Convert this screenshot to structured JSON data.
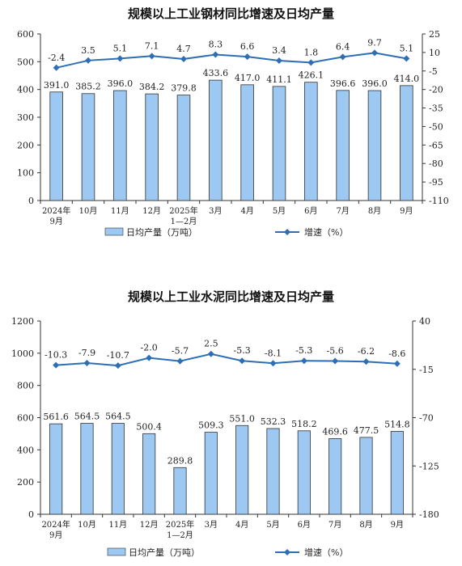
{
  "chart_data": [
    {
      "type": "bar",
      "title": "规模以上工业钢材同比增速及日均产量",
      "categories": [
        "2024年\n9月",
        "10月",
        "11月",
        "12月",
        "2025年\n1—2月",
        "3月",
        "4月",
        "5月",
        "6月",
        "7月",
        "8月",
        "9月"
      ],
      "series": [
        {
          "name": "日均产量（万吨）",
          "type": "bar",
          "axis": "left",
          "values": [
            391.0,
            385.2,
            396.0,
            384.2,
            379.8,
            433.6,
            417.0,
            411.1,
            426.1,
            396.6,
            396.0,
            414.0
          ],
          "labels": [
            "391.0",
            "385.2",
            "396.0",
            "384.2",
            "379.8",
            "433.6",
            "417.0",
            "411.1",
            "426.1",
            "396.6",
            "396.0",
            "414.0"
          ]
        },
        {
          "name": "增速（%）",
          "type": "line",
          "axis": "right",
          "values": [
            -2.4,
            3.5,
            5.1,
            7.1,
            4.7,
            8.3,
            6.6,
            3.4,
            1.8,
            6.4,
            9.7,
            5.1
          ],
          "labels": [
            "-2.4",
            "3.5",
            "5.1",
            "7.1",
            "4.7",
            "8.3",
            "6.6",
            "3.4",
            "1.8",
            "6.4",
            "9.7",
            "5.1"
          ]
        }
      ],
      "y_left": {
        "min": 0,
        "max": 600,
        "ticks": [
          "0",
          "100",
          "200",
          "300",
          "400",
          "500",
          "600"
        ]
      },
      "y_right": {
        "min": -110,
        "max": 25,
        "ticks": [
          "25",
          "10",
          "-5",
          "-20",
          "-35",
          "-50",
          "-65",
          "-80",
          "-95",
          "-110"
        ]
      },
      "legend_position": "bottom",
      "grid": false
    },
    {
      "type": "bar",
      "title": "规模以上工业水泥同比增速及日均产量",
      "categories": [
        "2024年\n9月",
        "10月",
        "11月",
        "12月",
        "2025年\n1—2月",
        "3月",
        "4月",
        "5月",
        "6月",
        "7月",
        "8月",
        "9月"
      ],
      "series": [
        {
          "name": "日均产量（万吨）",
          "type": "bar",
          "axis": "left",
          "values": [
            561.6,
            564.5,
            564.5,
            500.4,
            289.8,
            509.3,
            551.0,
            532.3,
            518.2,
            469.6,
            477.5,
            514.8
          ],
          "labels": [
            "561.6",
            "564.5",
            "564.5",
            "500.4",
            "289.8",
            "509.3",
            "551.0",
            "532.3",
            "518.2",
            "469.6",
            "477.5",
            "514.8"
          ]
        },
        {
          "name": "增速（%）",
          "type": "line",
          "axis": "right",
          "values": [
            -10.3,
            -7.9,
            -10.7,
            -2.0,
            -5.7,
            2.5,
            -5.3,
            -8.1,
            -5.3,
            -5.6,
            -6.2,
            -8.6
          ],
          "labels": [
            "-10.3",
            "-7.9",
            "-10.7",
            "-2.0",
            "-5.7",
            "2.5",
            "-5.3",
            "-8.1",
            "-5.3",
            "-5.6",
            "-6.2",
            "-8.6"
          ]
        }
      ],
      "y_left": {
        "min": 0,
        "max": 1200,
        "ticks": [
          "0",
          "200",
          "400",
          "600",
          "800",
          "1000",
          "1200"
        ]
      },
      "y_right": {
        "min": -180,
        "max": 40,
        "ticks": [
          "40",
          "-15",
          "-70",
          "-125",
          "-180"
        ]
      },
      "legend_position": "bottom",
      "grid": false
    }
  ],
  "colors": {
    "bar_fill": "#9cc8f2",
    "bar_stroke": "#333333",
    "line": "#2e6eb5",
    "axis": "#333333"
  }
}
